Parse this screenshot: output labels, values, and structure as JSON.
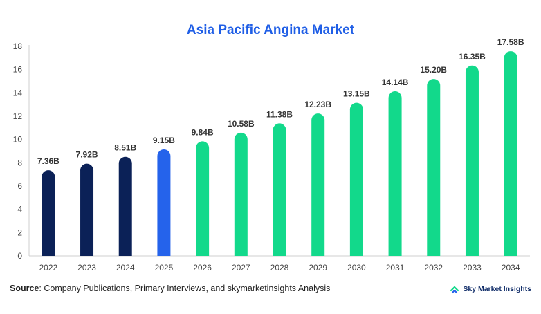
{
  "chart_data": {
    "type": "bar",
    "title": "Asia Pacific Angina Market",
    "categories": [
      "2022",
      "2023",
      "2024",
      "2025",
      "2026",
      "2027",
      "2028",
      "2029",
      "2030",
      "2031",
      "2032",
      "2033",
      "2034"
    ],
    "values": [
      7.36,
      7.92,
      8.51,
      9.15,
      9.84,
      10.58,
      11.38,
      12.23,
      13.15,
      14.14,
      15.2,
      16.35,
      17.58
    ],
    "value_labels": [
      "7.36B",
      "7.92B",
      "8.51B",
      "9.15B",
      "9.84B",
      "10.58B",
      "11.38B",
      "12.23B",
      "13.15B",
      "14.14B",
      "15.20B",
      "16.35B",
      "17.58B"
    ],
    "ylim": [
      0,
      18
    ],
    "yticks": [
      0,
      2,
      4,
      6,
      8,
      10,
      12,
      14,
      16,
      18
    ],
    "grid": false,
    "colors": {
      "historical": "#0b2157",
      "base": "#2563eb",
      "forecast": "#12d98b"
    },
    "bar_segments": [
      "historical",
      "historical",
      "historical",
      "base",
      "forecast",
      "forecast",
      "forecast",
      "forecast",
      "forecast",
      "forecast",
      "forecast",
      "forecast",
      "forecast"
    ]
  },
  "source": {
    "label": "Source",
    "text": ": Company Publications, Primary Interviews, and skymarketinsights Analysis"
  },
  "brand": {
    "name": "Sky Market Insights"
  }
}
